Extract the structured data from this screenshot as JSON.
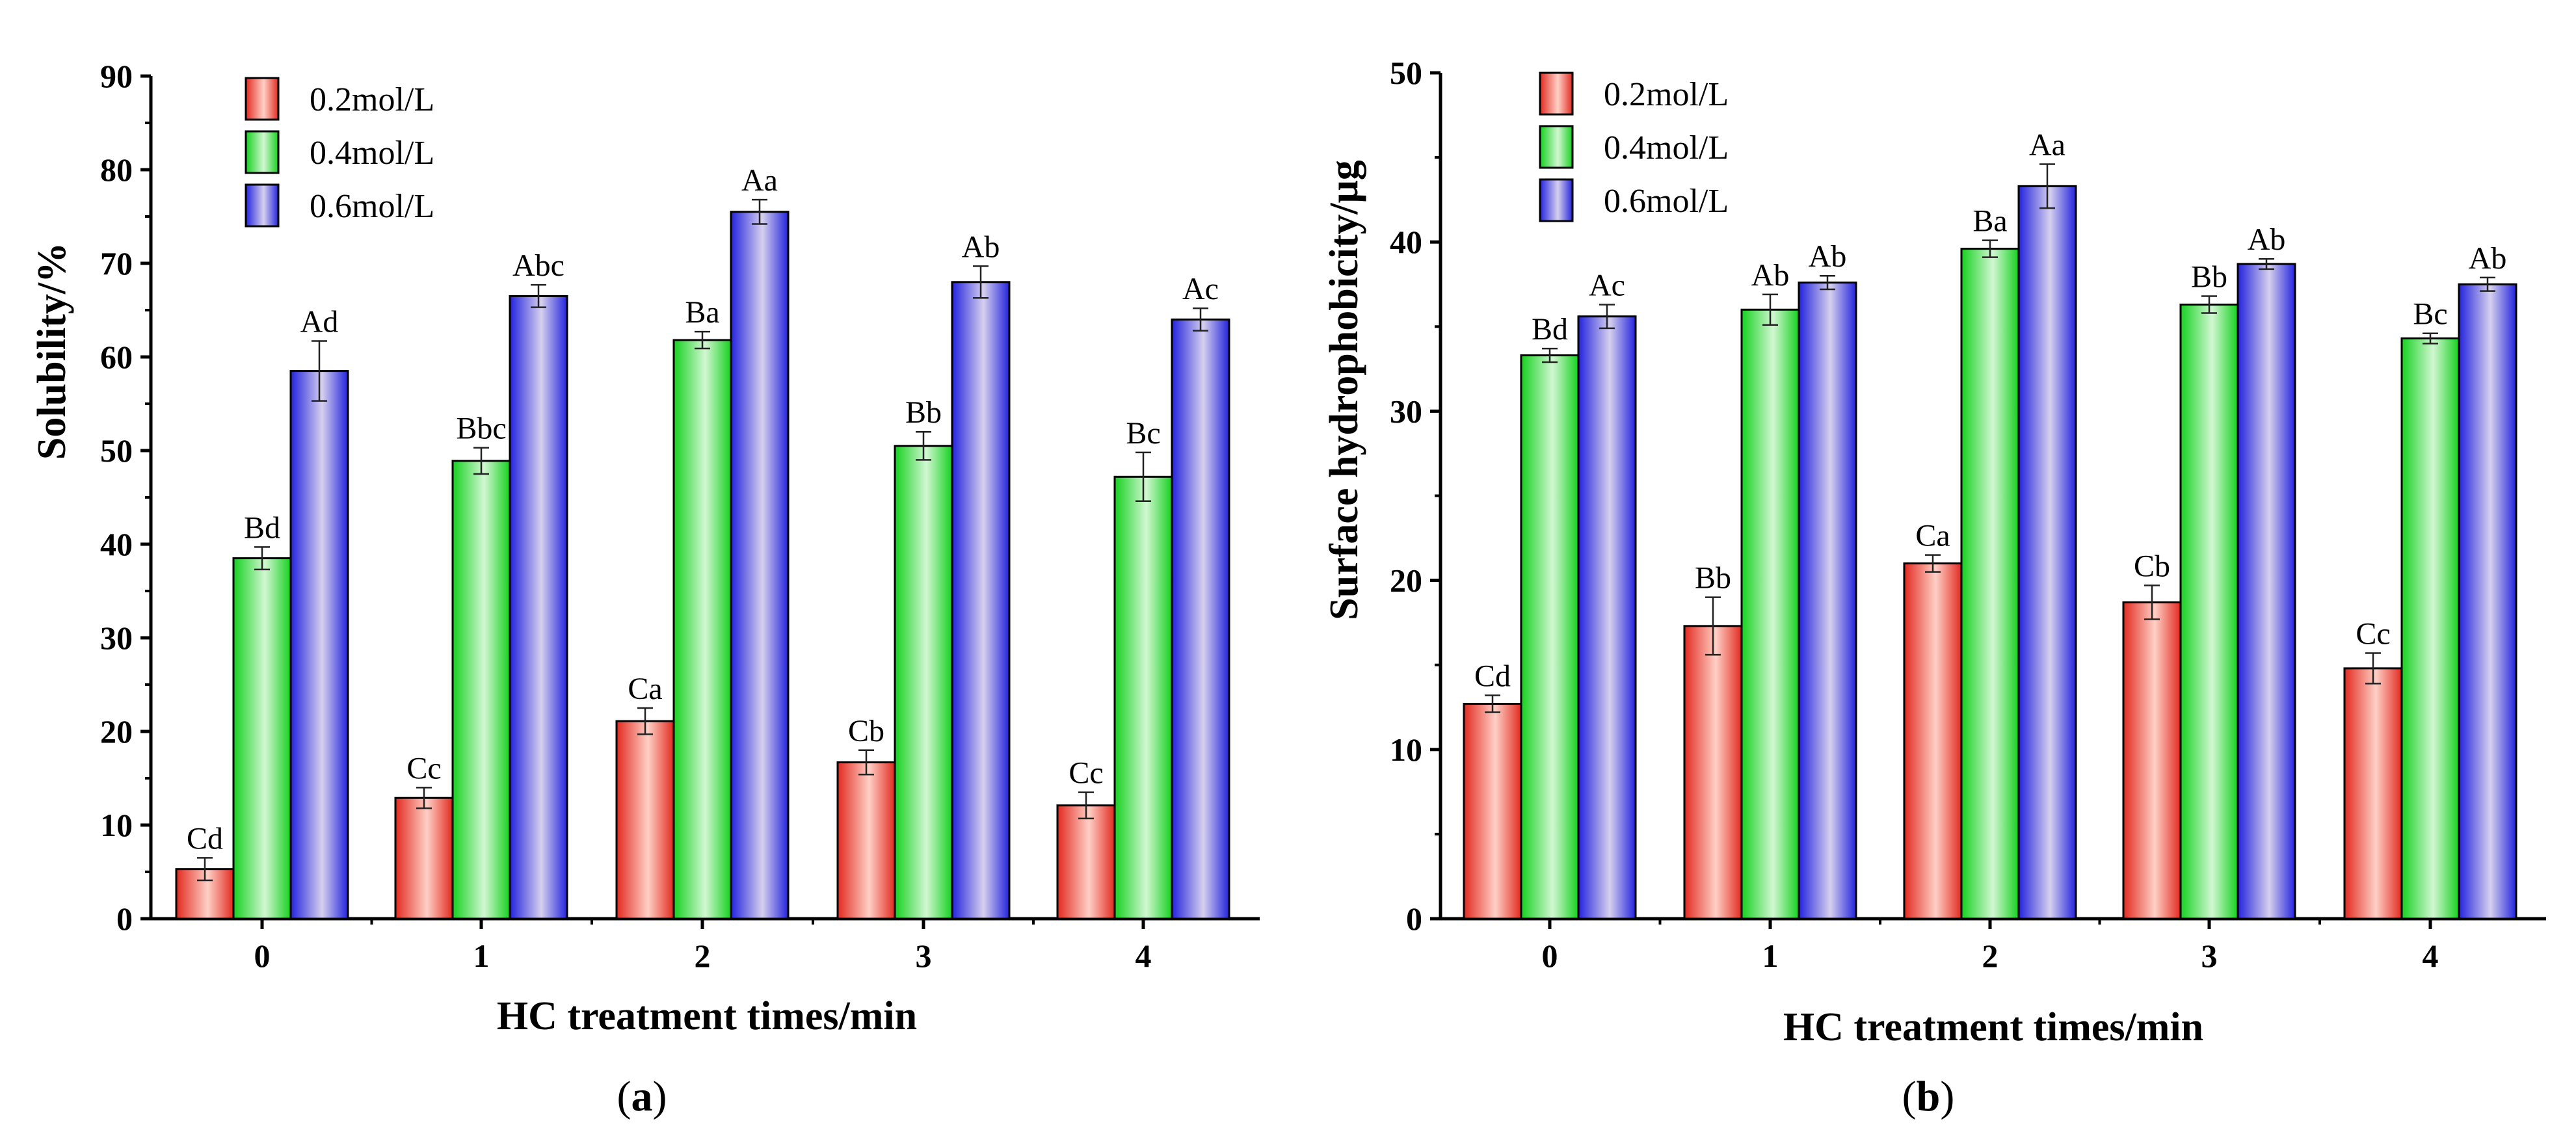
{
  "colors": {
    "series_0.2": "#e83a2e",
    "series_0.4": "#22d42a",
    "series_0.6": "#2e2ee0"
  },
  "chart_data": [
    {
      "type": "bar",
      "panel_label": "a",
      "xlabel": "HC treatment times/min",
      "ylabel": "Solubility/%",
      "ylim": [
        0,
        90
      ],
      "yticks": [
        0,
        10,
        20,
        30,
        40,
        50,
        60,
        70,
        80,
        90
      ],
      "categories": [
        "0",
        "1",
        "2",
        "3",
        "4"
      ],
      "legend_position": "top-left",
      "grid": false,
      "series": [
        {
          "name": "0.2mol/L",
          "values": [
            5.3,
            12.9,
            21.1,
            16.7,
            12.1
          ],
          "errors": [
            1.2,
            1.1,
            1.4,
            1.3,
            1.4
          ],
          "labels": [
            "Cd",
            "Cc",
            "Ca",
            "Cb",
            "Cc"
          ]
        },
        {
          "name": "0.4mol/L",
          "values": [
            38.5,
            48.9,
            61.8,
            50.5,
            47.2
          ],
          "errors": [
            1.2,
            1.4,
            0.9,
            1.5,
            2.6
          ],
          "labels": [
            "Bd",
            "Bbc",
            "Ba",
            "Bb",
            "Bc"
          ]
        },
        {
          "name": "0.6mol/L",
          "values": [
            58.5,
            66.5,
            75.5,
            68.0,
            64.0
          ],
          "errors": [
            3.2,
            1.2,
            1.3,
            1.7,
            1.2
          ],
          "labels": [
            "Ad",
            "Abc",
            "Aa",
            "Ab",
            "Ac"
          ]
        }
      ]
    },
    {
      "type": "bar",
      "panel_label": "b",
      "xlabel": "HC treatment times/min",
      "ylabel": "Surface hydrophobicity/μg",
      "ylim": [
        0,
        50
      ],
      "yticks": [
        0,
        10,
        20,
        30,
        40,
        50
      ],
      "categories": [
        "0",
        "1",
        "2",
        "3",
        "4"
      ],
      "legend_position": "top-left",
      "grid": false,
      "series": [
        {
          "name": "0.2mol/L",
          "values": [
            12.7,
            17.3,
            21.0,
            18.7,
            14.8
          ],
          "errors": [
            0.5,
            1.7,
            0.5,
            1.0,
            0.9
          ],
          "labels": [
            "Cd",
            "Bb",
            "Ca",
            "Cb",
            "Cc"
          ]
        },
        {
          "name": "0.4mol/L",
          "values": [
            33.3,
            36.0,
            39.6,
            36.3,
            34.3
          ],
          "errors": [
            0.4,
            0.9,
            0.5,
            0.5,
            0.3
          ],
          "labels": [
            "Bd",
            "Ab",
            "Ba",
            "Bb",
            "Bc"
          ]
        },
        {
          "name": "0.6mol/L",
          "values": [
            35.6,
            37.6,
            43.3,
            38.7,
            37.5
          ],
          "errors": [
            0.7,
            0.4,
            1.3,
            0.3,
            0.4
          ],
          "labels": [
            "Ac",
            "Ab",
            "Aa",
            "Ab",
            "Ab"
          ]
        }
      ]
    }
  ]
}
